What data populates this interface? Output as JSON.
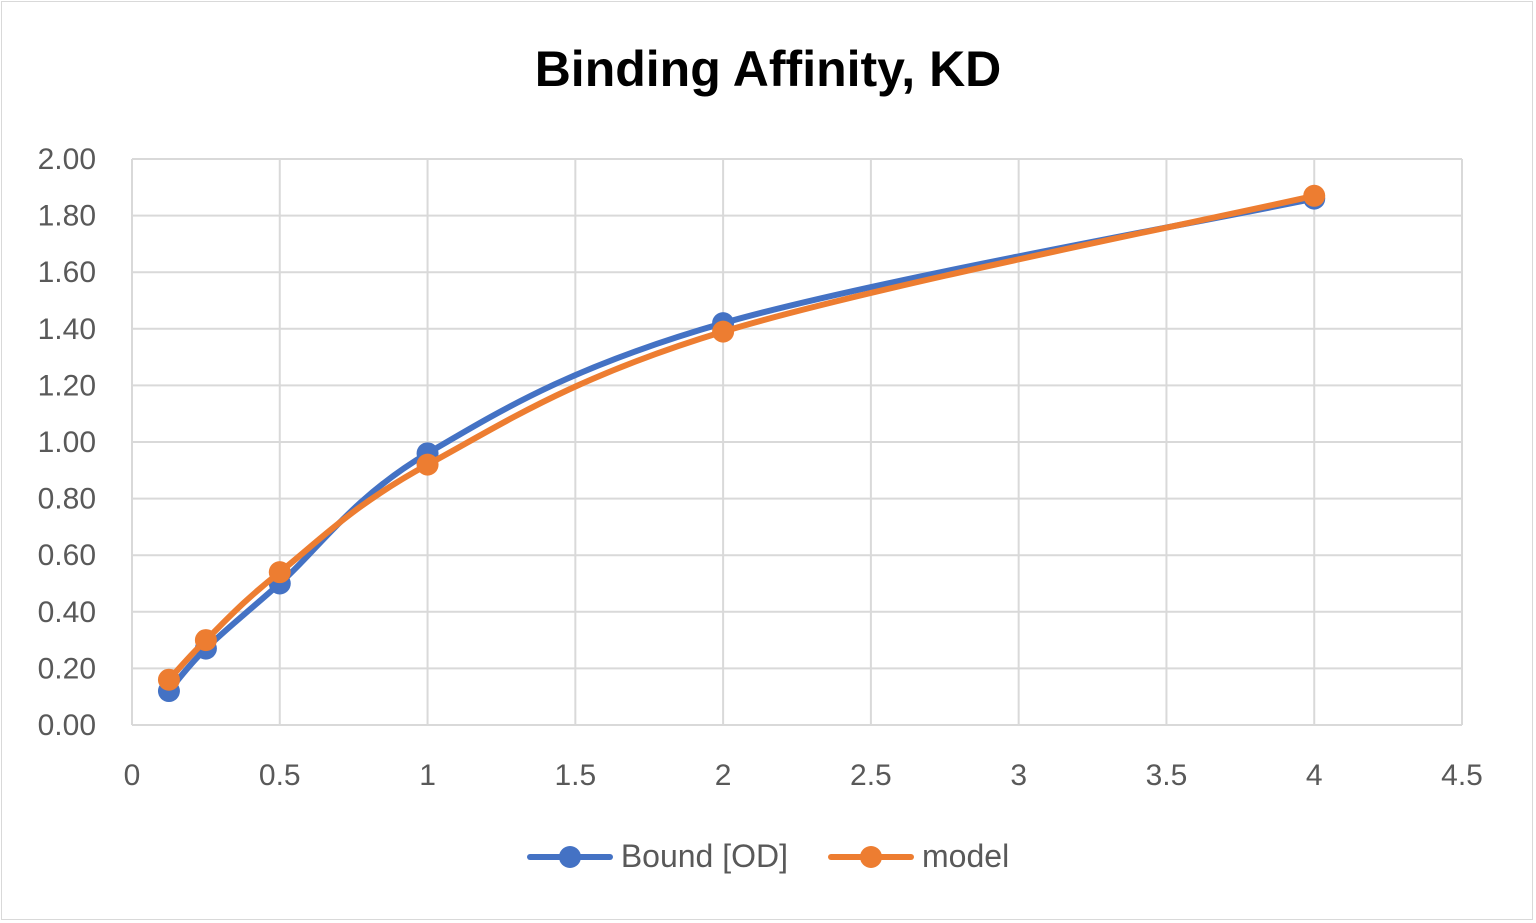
{
  "chart_data": {
    "type": "line",
    "title": "Binding Affinity, KD",
    "xlabel": "",
    "ylabel": "",
    "xlim": [
      0,
      4.5
    ],
    "ylim": [
      0,
      2.0
    ],
    "x_ticks": [
      "0",
      "0.5",
      "1",
      "1.5",
      "2",
      "2.5",
      "3",
      "3.5",
      "4",
      "4.5"
    ],
    "y_ticks": [
      "0.00",
      "0.20",
      "0.40",
      "0.60",
      "0.80",
      "1.00",
      "1.20",
      "1.40",
      "1.60",
      "1.80",
      "2.00"
    ],
    "grid": true,
    "legend_position": "bottom",
    "x": [
      0.125,
      0.25,
      0.5,
      1,
      2,
      4
    ],
    "series": [
      {
        "name": "Bound [OD]",
        "color": "#4472c4",
        "values": [
          0.12,
          0.27,
          0.5,
          0.96,
          1.42,
          1.86
        ]
      },
      {
        "name": "model",
        "color": "#ed7d31",
        "values": [
          0.16,
          0.3,
          0.54,
          0.92,
          1.39,
          1.87
        ]
      }
    ]
  }
}
